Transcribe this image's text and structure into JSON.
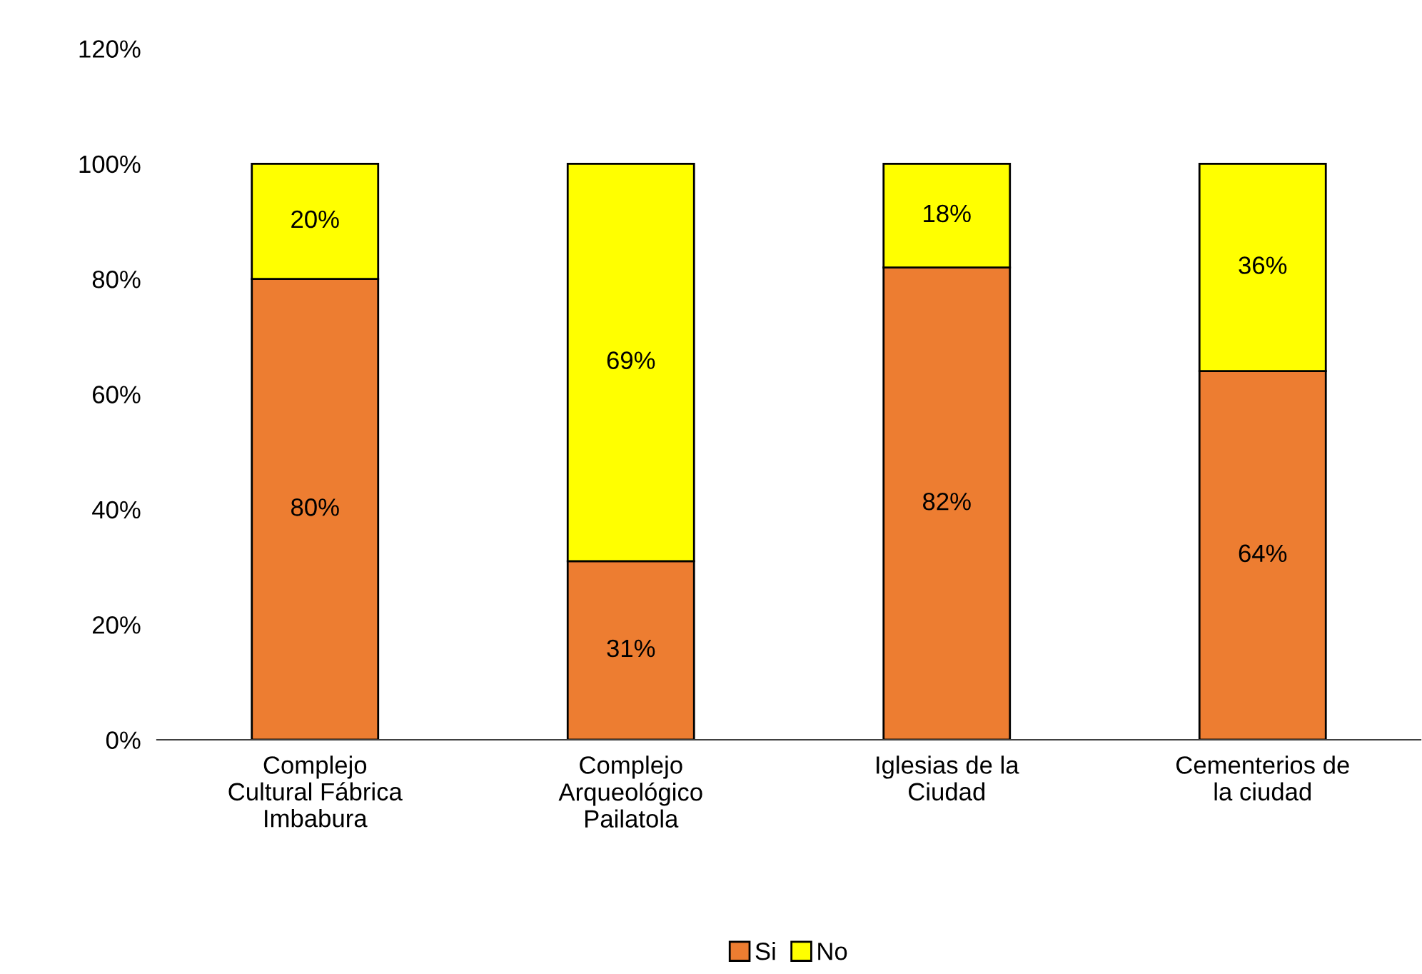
{
  "chart_data": {
    "type": "bar",
    "stacked": true,
    "categories": [
      "Complejo\nCultural Fábrica\nImbabura",
      "Complejo\nArqueológico\nPailatola",
      "Iglesias de la\nCiudad",
      "Cementerios de\nla ciudad"
    ],
    "series": [
      {
        "name": "Si",
        "color": "#ed7d31",
        "values": [
          80,
          31,
          82,
          64
        ],
        "value_labels": [
          "80%",
          "31%",
          "82%",
          "64%"
        ]
      },
      {
        "name": "No",
        "color": "#ffff00",
        "values": [
          20,
          69,
          18,
          36
        ],
        "value_labels": [
          "20%",
          "69%",
          "18%",
          "36%"
        ]
      }
    ],
    "ylim": [
      0,
      120
    ],
    "yticks": [
      {
        "value": 0,
        "label": "0%"
      },
      {
        "value": 20,
        "label": "20%"
      },
      {
        "value": 40,
        "label": "40%"
      },
      {
        "value": 60,
        "label": "60%"
      },
      {
        "value": 80,
        "label": "80%"
      },
      {
        "value": 100,
        "label": "100%"
      },
      {
        "value": 120,
        "label": "120%"
      }
    ],
    "grid": false,
    "legend": "bottom"
  }
}
